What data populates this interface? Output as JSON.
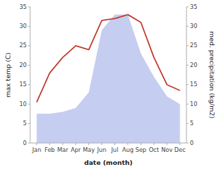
{
  "chart_data": {
    "type": "line",
    "categories": [
      "Jan",
      "Feb",
      "Mar",
      "Apr",
      "May",
      "Jun",
      "Jul",
      "Aug",
      "Sep",
      "Oct",
      "Nov",
      "Dec"
    ],
    "xlabel": "date (month)",
    "ylabel": "max temp (C)",
    "y2label": "med. precipitation (kg/m2)",
    "series": [
      {
        "type": "line",
        "color": "#c0392b",
        "values": [
          10.5,
          18.0,
          22.0,
          25.0,
          24.0,
          31.5,
          32.0,
          33.0,
          31.0,
          22.0,
          15.0,
          13.5
        ]
      },
      {
        "type": "area",
        "color": "#c5cdf0",
        "axis": "y2",
        "values": [
          7.5,
          7.5,
          8.0,
          9.0,
          13.0,
          29.0,
          33.0,
          33.0,
          23.0,
          17.0,
          12.0,
          10.0
        ]
      }
    ],
    "ylim": [
      0,
      35
    ],
    "yticks": [
      0,
      5,
      10,
      15,
      20,
      25,
      30,
      35
    ],
    "y2lim": [
      0,
      35
    ],
    "y2ticks": [
      0,
      5,
      10,
      15,
      20,
      25,
      30,
      35
    ],
    "grid": false
  }
}
